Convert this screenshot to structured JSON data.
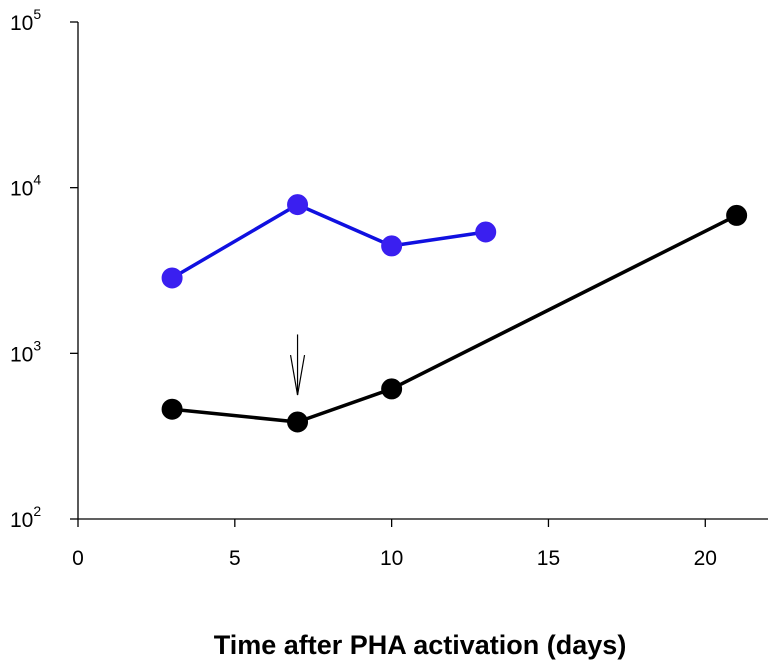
{
  "chart_data": {
    "type": "line",
    "title": "",
    "xlabel": "Time after PHA activation (days)",
    "ylabel": "",
    "xlim": [
      0,
      22
    ],
    "ylim": [
      100,
      100000
    ],
    "yscale": "log",
    "x_ticks": [
      0,
      5,
      10,
      15,
      20
    ],
    "y_ticks": [
      {
        "value": 100,
        "base": "10",
        "exp": "2"
      },
      {
        "value": 1000,
        "base": "10",
        "exp": "3"
      },
      {
        "value": 10000,
        "base": "10",
        "exp": "4"
      },
      {
        "value": 100000,
        "base": "10",
        "exp": "5"
      }
    ],
    "grid": false,
    "series": [
      {
        "color": "#1010e0",
        "marker_color": "#3a1ff0",
        "x": [
          3,
          7,
          10,
          13
        ],
        "y": [
          2850,
          7900,
          4450,
          5400
        ]
      },
      {
        "color": "#000000",
        "marker_color": "#000000",
        "x": [
          3,
          7,
          10,
          21
        ],
        "y": [
          460,
          385,
          610,
          6800
        ]
      }
    ],
    "annotations": [
      {
        "type": "arrow",
        "x": 7,
        "y_from": 1300,
        "y_to": 560
      }
    ]
  }
}
